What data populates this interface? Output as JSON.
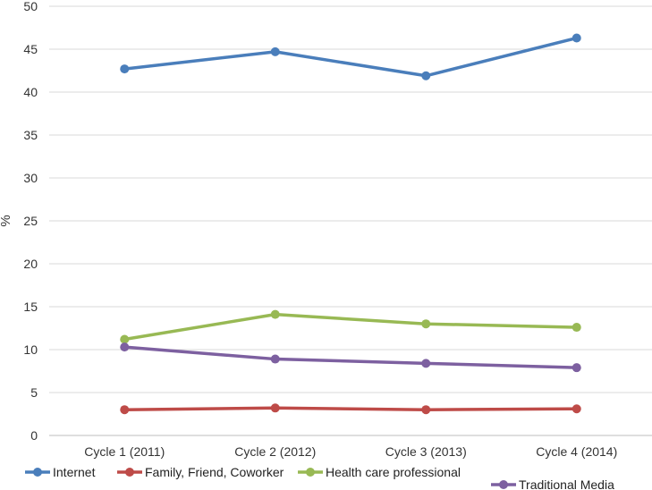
{
  "chart_data": {
    "type": "line",
    "title": "",
    "xlabel": "",
    "ylabel": "%",
    "categories": [
      "Cycle 1 (2011)",
      "Cycle 2 (2012)",
      "Cycle 3 (2013)",
      "Cycle 4 (2014)"
    ],
    "ylim": [
      0,
      50
    ],
    "yticks": [
      0,
      5,
      10,
      15,
      20,
      25,
      30,
      35,
      40,
      45,
      50
    ],
    "grid": true,
    "legend_position": "bottom",
    "series": [
      {
        "name": "Internet",
        "color": "#4a7ebb",
        "values": [
          42.7,
          44.7,
          41.9,
          46.3
        ]
      },
      {
        "name": "Family, Friend, Coworker",
        "color": "#be4b48",
        "values": [
          3.0,
          3.2,
          3.0,
          3.1
        ]
      },
      {
        "name": "Health care professional",
        "color": "#98b954",
        "values": [
          11.2,
          14.1,
          13.0,
          12.6
        ]
      },
      {
        "name": "Traditional Media",
        "color": "#7d60a0",
        "values": [
          10.3,
          8.9,
          8.4,
          7.9
        ]
      }
    ]
  }
}
